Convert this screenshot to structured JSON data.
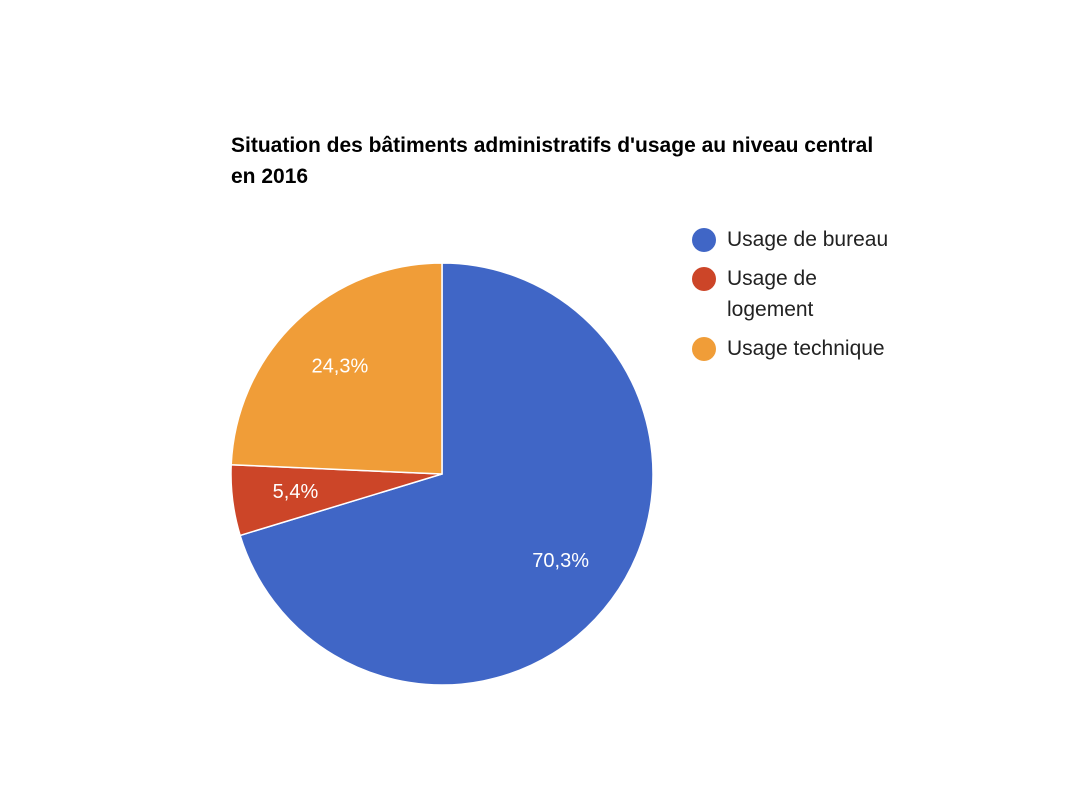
{
  "chart_data": {
    "type": "pie",
    "title": "Situation des bâtiments administratifs d'usage au niveau central en 2016",
    "categories": [
      "Usage de bureau",
      "Usage de logement",
      "Usage technique"
    ],
    "values": [
      70.3,
      5.4,
      24.3
    ],
    "value_labels": [
      "70,3%",
      "5,4%",
      "24,3%"
    ],
    "colors": [
      "#4066c6",
      "#cc4528",
      "#f09d38"
    ],
    "legend": "right"
  }
}
